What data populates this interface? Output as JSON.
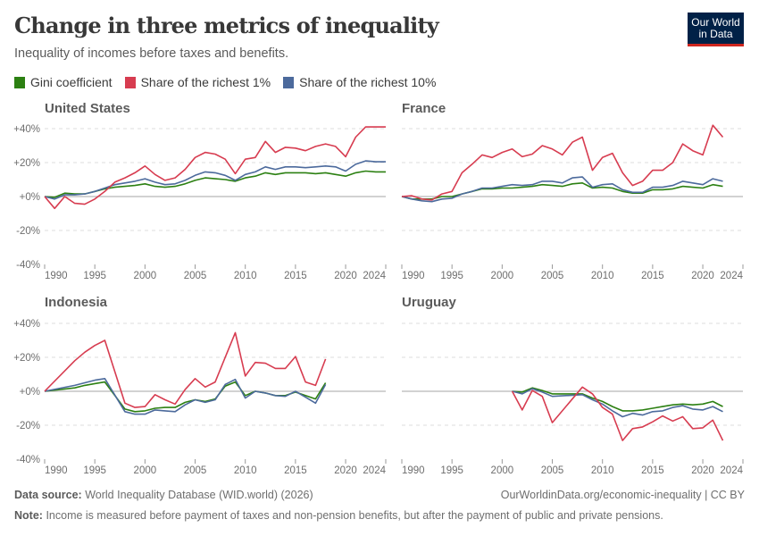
{
  "header": {
    "title": "Change in three metrics of inequality",
    "subtitle": "Inequality of incomes before taxes and benefits.",
    "logo_line1": "Our World",
    "logo_line2": "in Data"
  },
  "footer": {
    "source_label": "Data source:",
    "source_text": "World Inequality Database (WID.world) (2026)",
    "url": "OurWorldinData.org/economic-inequality | CC BY",
    "note_label": "Note:",
    "note_text": "Income is measured before payment of taxes and non-pension benefits, but after the payment of public and private pensions."
  },
  "chart_data": {
    "type": "line",
    "legend": [
      {
        "name": "Gini coefficient",
        "color": "#2c8012"
      },
      {
        "name": "Share of the richest 1%",
        "color": "#d73c50"
      },
      {
        "name": "Share of the richest 10%",
        "color": "#4c6a9c"
      }
    ],
    "legend_placement": "top",
    "ylim": [
      -40,
      40
    ],
    "yticks": [
      "+40%",
      "+20%",
      "+0%",
      "-20%",
      "-40%"
    ],
    "ytick_values": [
      40,
      20,
      0,
      -20,
      -40
    ],
    "xlim": [
      1990,
      2024
    ],
    "xticks": [
      1990,
      1995,
      2000,
      2005,
      2010,
      2015,
      2020,
      2024
    ],
    "grid": "horizontal dashed",
    "panels": [
      {
        "title": "United States",
        "years": [
          1990,
          1991,
          1992,
          1993,
          1994,
          1995,
          1996,
          1997,
          1998,
          1999,
          2000,
          2001,
          2002,
          2003,
          2004,
          2005,
          2006,
          2007,
          2008,
          2009,
          2010,
          2011,
          2012,
          2013,
          2014,
          2015,
          2016,
          2017,
          2018,
          2019,
          2020,
          2021,
          2022,
          2023,
          2024
        ],
        "series": {
          "Gini coefficient": [
            0,
            -0.5,
            2,
            1.5,
            1.5,
            3,
            4.5,
            5.5,
            6,
            6.5,
            7.5,
            6,
            5.5,
            6,
            7.5,
            9.5,
            11,
            10.5,
            10,
            9,
            11,
            12,
            14,
            13,
            14,
            14,
            14,
            13.5,
            14,
            13,
            12,
            14,
            15,
            14.5,
            14.5
          ],
          "Share of the richest 1%": [
            0,
            -7,
            0,
            -4,
            -4.5,
            -1.5,
            3,
            8.5,
            11,
            14,
            18,
            13,
            9.5,
            11,
            16,
            23,
            26,
            25,
            22,
            13.5,
            22,
            23,
            32.5,
            26,
            29,
            28.5,
            27,
            29.5,
            31,
            29.5,
            23.5,
            35,
            41,
            41,
            41
          ],
          "Share of the richest 10%": [
            0,
            -1.5,
            1,
            1,
            1.5,
            3,
            5,
            7,
            8,
            9,
            10.5,
            8.5,
            7,
            7.5,
            9.5,
            12.5,
            14.5,
            14,
            12.5,
            9.5,
            13,
            14.5,
            17.5,
            16,
            17.5,
            17.5,
            17,
            17.5,
            18,
            17.5,
            15,
            19,
            21,
            20.5,
            20.5
          ]
        }
      },
      {
        "title": "France",
        "years": [
          1990,
          1991,
          1992,
          1993,
          1994,
          1995,
          1996,
          1997,
          1998,
          1999,
          2000,
          2001,
          2002,
          2003,
          2004,
          2005,
          2006,
          2007,
          2008,
          2009,
          2010,
          2011,
          2012,
          2013,
          2014,
          2015,
          2016,
          2017,
          2018,
          2019,
          2020,
          2021,
          2022
        ],
        "series": {
          "Gini coefficient": [
            0,
            -1.5,
            -1.5,
            -1.5,
            0,
            0,
            1.5,
            3,
            4.5,
            4.5,
            5,
            5,
            5.5,
            6,
            7,
            6.5,
            6,
            7.5,
            8,
            5,
            5.5,
            5,
            3,
            2,
            2,
            4,
            4,
            4.5,
            6,
            5.5,
            5,
            7,
            6
          ],
          "Share of the richest 1%": [
            0,
            0.5,
            -1.5,
            -2,
            1.5,
            3,
            14,
            19,
            24.5,
            23,
            26,
            28,
            23.5,
            25,
            30,
            28,
            24.5,
            32,
            35,
            15.5,
            23,
            25.5,
            14,
            6.5,
            9,
            15.5,
            15.5,
            20,
            31,
            27,
            24.5,
            42,
            35
          ],
          "Share of the richest 10%": [
            0,
            -1.5,
            -2.5,
            -3,
            -1.5,
            -1,
            1.5,
            3,
            5,
            5,
            6,
            7,
            6.5,
            7,
            9,
            9,
            8,
            11,
            11.5,
            5.5,
            7,
            7.5,
            4,
            2.5,
            2.5,
            5.5,
            5.5,
            6.5,
            9,
            8,
            7,
            10.5,
            9
          ]
        }
      },
      {
        "title": "Indonesia",
        "years": [
          1990,
          1993,
          1994,
          1995,
          1996,
          1998,
          1999,
          2000,
          2001,
          2002,
          2003,
          2004,
          2005,
          2006,
          2007,
          2008,
          2009,
          2010,
          2011,
          2012,
          2013,
          2014,
          2015,
          2016,
          2017,
          2018
        ],
        "series": {
          "Gini coefficient": [
            0,
            2,
            3.5,
            4.5,
            5.5,
            -10.5,
            -12,
            -11.5,
            -10,
            -9.5,
            -9.5,
            -6.5,
            -5,
            -6,
            -4.5,
            3,
            5.5,
            -2.5,
            0,
            -1,
            -2.5,
            -2.5,
            -0.5,
            -2.5,
            -4.5,
            5
          ],
          "Share of the richest 1%": [
            0,
            18,
            23,
            27,
            30,
            -7,
            -9.5,
            -9,
            -2,
            -5,
            -7.5,
            1,
            7.5,
            2.5,
            5.5,
            20,
            34.5,
            9,
            17,
            16.5,
            13.5,
            13.5,
            20.5,
            5.5,
            3.5,
            19
          ],
          "Share of the richest 10%": [
            0,
            3.5,
            5,
            6.5,
            7.5,
            -12,
            -13.5,
            -13.5,
            -11,
            -11.5,
            -12,
            -8,
            -5,
            -6.5,
            -5,
            4,
            7,
            -4,
            0,
            -1,
            -2.5,
            -3,
            0,
            -3.5,
            -7,
            4
          ]
        }
      },
      {
        "title": "Uruguay",
        "years": [
          2001,
          2002,
          2003,
          2004,
          2005,
          2008,
          2009,
          2010,
          2011,
          2012,
          2013,
          2014,
          2015,
          2016,
          2017,
          2018,
          2019,
          2020,
          2021,
          2022
        ],
        "series": {
          "Gini coefficient": [
            0,
            -0.5,
            2,
            0.5,
            -1.5,
            -1.5,
            -4,
            -6,
            -9,
            -11.5,
            -11.5,
            -11,
            -10,
            -9,
            -8,
            -7.5,
            -8,
            -7.5,
            -6,
            -9
          ],
          "Share of the richest 1%": [
            0,
            -11,
            0.5,
            -3,
            -18.5,
            2.5,
            -1.5,
            -9.5,
            -13.5,
            -29,
            -22,
            -21,
            -18,
            -14.5,
            -17.5,
            -15,
            -22,
            -21.5,
            -17,
            -29
          ],
          "Share of the richest 10%": [
            0,
            -1.5,
            1.5,
            -0.5,
            -3,
            -2,
            -5,
            -7.5,
            -11.5,
            -15,
            -13,
            -14,
            -12,
            -11.5,
            -9.5,
            -8.5,
            -10.5,
            -11,
            -9,
            -12
          ]
        }
      }
    ]
  }
}
